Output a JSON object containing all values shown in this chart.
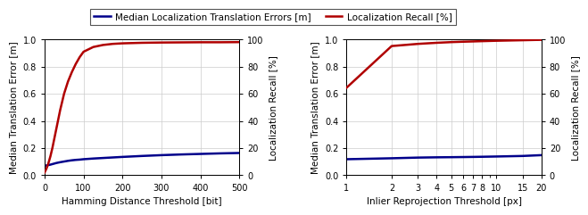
{
  "left_blue_x": [
    0,
    5,
    10,
    15,
    20,
    25,
    30,
    35,
    40,
    50,
    60,
    70,
    80,
    90,
    100,
    125,
    150,
    175,
    200,
    250,
    300,
    350,
    400,
    450,
    500
  ],
  "left_blue_y": [
    0.07,
    0.072,
    0.075,
    0.078,
    0.082,
    0.086,
    0.09,
    0.093,
    0.096,
    0.101,
    0.106,
    0.11,
    0.113,
    0.115,
    0.118,
    0.123,
    0.127,
    0.131,
    0.135,
    0.142,
    0.148,
    0.153,
    0.157,
    0.161,
    0.164
  ],
  "left_red_x": [
    0,
    5,
    10,
    15,
    20,
    25,
    30,
    35,
    40,
    50,
    60,
    70,
    80,
    90,
    100,
    125,
    150,
    175,
    200,
    250,
    300,
    350,
    400,
    450,
    500
  ],
  "left_red_y": [
    0.02,
    0.05,
    0.09,
    0.14,
    0.2,
    0.27,
    0.34,
    0.41,
    0.48,
    0.6,
    0.69,
    0.76,
    0.82,
    0.87,
    0.91,
    0.945,
    0.96,
    0.968,
    0.972,
    0.976,
    0.978,
    0.979,
    0.98,
    0.98,
    0.981
  ],
  "right_blue_x": [
    1,
    2,
    3,
    4,
    5,
    6,
    7,
    8,
    10,
    15,
    20
  ],
  "right_blue_y": [
    0.118,
    0.125,
    0.13,
    0.132,
    0.133,
    0.134,
    0.135,
    0.136,
    0.138,
    0.142,
    0.148
  ],
  "right_red_x": [
    1,
    2,
    3,
    4,
    5,
    6,
    7,
    8,
    10,
    15,
    20
  ],
  "right_red_y": [
    0.645,
    0.952,
    0.968,
    0.976,
    0.981,
    0.984,
    0.986,
    0.988,
    0.991,
    0.995,
    0.998
  ],
  "blue_color": "#00008B",
  "red_color": "#B00000",
  "left_xlabel": "Hamming Distance Threshold [bit]",
  "right_xlabel": "Inlier Reprojection Threshold [px]",
  "ylabel_left": "Median Translation Error [m]",
  "ylabel_right": "Localization Recall [%]",
  "legend_blue": "Median Localization Translation Errors [m]",
  "legend_red": "Localization Recall [%]",
  "ylim_left": [
    0.0,
    1.0
  ],
  "ylim_right": [
    0.0,
    100.0
  ],
  "left_xticks": [
    0,
    100,
    200,
    300,
    400,
    500
  ],
  "right_xticks": [
    1,
    2,
    3,
    4,
    5,
    6,
    7,
    8,
    10,
    15,
    20
  ],
  "left_yticks": [
    0.0,
    0.2,
    0.4,
    0.6,
    0.8,
    1.0
  ],
  "right_yticks_left": [
    0.0,
    0.2,
    0.4,
    0.6,
    0.8,
    1.0
  ],
  "right_yticks_right": [
    0,
    20,
    40,
    60,
    80,
    100
  ],
  "grid_color": "#cccccc",
  "bg_color": "#ffffff",
  "linewidth": 1.8
}
